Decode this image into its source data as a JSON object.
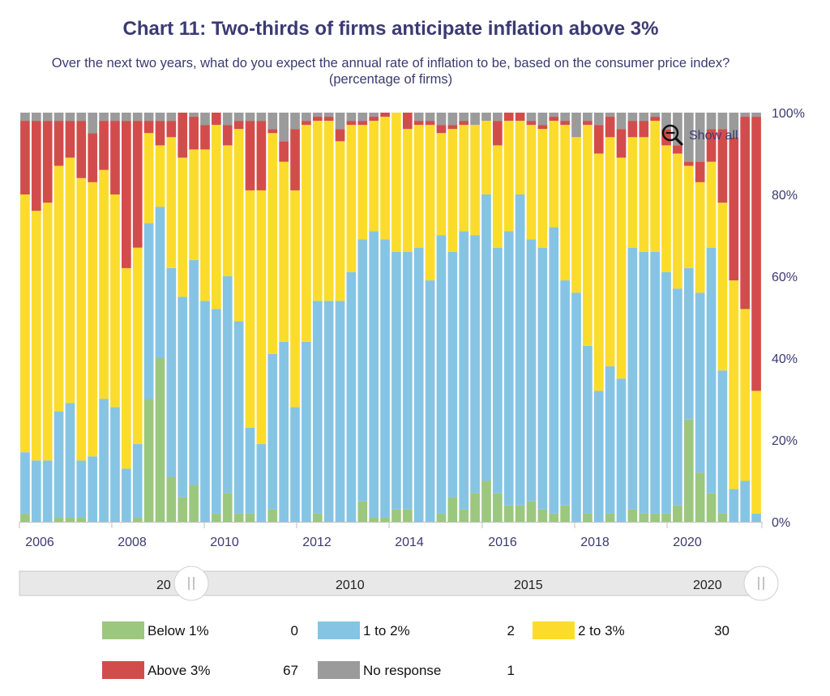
{
  "title": "Chart 11: Two-thirds of firms anticipate inflation above 3%",
  "subtitle": "Over the next two years, what do you expect the annual rate of inflation to be, based on the consumer price index? (percentage of firms)",
  "show_all_label": "Show all",
  "navigator_labels": [
    "20",
    "2010",
    "2015",
    "2020"
  ],
  "colors": {
    "below1": "#9cc77f",
    "one_to_two": "#86c4e4",
    "two_to_three": "#fbdc2c",
    "above3": "#d34c4c",
    "no_response": "#9b9b9b",
    "axis_text": "#3b3a72"
  },
  "legend": [
    {
      "name": "Below 1%",
      "value": "0",
      "color": "#9cc77f"
    },
    {
      "name": "1 to 2%",
      "value": "2",
      "color": "#86c4e4"
    },
    {
      "name": "2 to 3%",
      "value": "30",
      "color": "#fbdc2c"
    },
    {
      "name": "Above 3%",
      "value": "67",
      "color": "#d34c4c"
    },
    {
      "name": "No response",
      "value": "1",
      "color": "#9b9b9b"
    }
  ],
  "chart_data": {
    "type": "bar",
    "stacked": true,
    "title": "Chart 11: Two-thirds of firms anticipate inflation above 3%",
    "subtitle": "Over the next two years, what do you expect the annual rate of inflation to be, based on the consumer price index? (percentage of firms)",
    "x_ticks": [
      "2006",
      "2008",
      "2010",
      "2012",
      "2014",
      "2016",
      "2018",
      "2020"
    ],
    "y_ticks": [
      "0%",
      "20%",
      "40%",
      "60%",
      "80%",
      "100%"
    ],
    "ylim": [
      0,
      100
    ],
    "grid": false,
    "legend_position": "bottom",
    "series_order": [
      "Below 1%",
      "1 to 2%",
      "2 to 3%",
      "Above 3%",
      "No response"
    ],
    "bars": [
      [
        2,
        15,
        63,
        18,
        2
      ],
      [
        0,
        15,
        61,
        22,
        2
      ],
      [
        0,
        15,
        63,
        20,
        2
      ],
      [
        1,
        26,
        60,
        11,
        2
      ],
      [
        1,
        28,
        60,
        9,
        2
      ],
      [
        1,
        14,
        69,
        14,
        2
      ],
      [
        0,
        16,
        67,
        12,
        5
      ],
      [
        0,
        30,
        56,
        12,
        2
      ],
      [
        0,
        28,
        52,
        18,
        2
      ],
      [
        0,
        13,
        49,
        36,
        2
      ],
      [
        1,
        18,
        48,
        31,
        2
      ],
      [
        30,
        43,
        22,
        3,
        2
      ],
      [
        40,
        37,
        15,
        6,
        2
      ],
      [
        11,
        51,
        32,
        4,
        2
      ],
      [
        6,
        49,
        34,
        11,
        0
      ],
      [
        9,
        55,
        27,
        8,
        1
      ],
      [
        0,
        54,
        37,
        6,
        3
      ],
      [
        2,
        50,
        45,
        3,
        0
      ],
      [
        7,
        53,
        32,
        5,
        3
      ],
      [
        2,
        47,
        47,
        2,
        2
      ],
      [
        2,
        21,
        58,
        17,
        2
      ],
      [
        0,
        19,
        62,
        17,
        2
      ],
      [
        3,
        38,
        54,
        1,
        4
      ],
      [
        0,
        44,
        44,
        5,
        7
      ],
      [
        0,
        28,
        53,
        15,
        4
      ],
      [
        0,
        44,
        53,
        1,
        2
      ],
      [
        2,
        52,
        44,
        1,
        1
      ],
      [
        0,
        54,
        44,
        1,
        1
      ],
      [
        0,
        54,
        39,
        3,
        4
      ],
      [
        0,
        61,
        36,
        1,
        2
      ],
      [
        5,
        64,
        28,
        1,
        2
      ],
      [
        1,
        70,
        27,
        1,
        1
      ],
      [
        1,
        68,
        30,
        1,
        0
      ],
      [
        3,
        63,
        34,
        0,
        0
      ],
      [
        3,
        63,
        30,
        4,
        0
      ],
      [
        0,
        67,
        30,
        1,
        2
      ],
      [
        0,
        59,
        38,
        1,
        2
      ],
      [
        2,
        68,
        25,
        2,
        3
      ],
      [
        6,
        60,
        30,
        1,
        3
      ],
      [
        3,
        68,
        26,
        1,
        2
      ],
      [
        7,
        63,
        27,
        0,
        3
      ],
      [
        10,
        70,
        18,
        0,
        2
      ],
      [
        7,
        60,
        25,
        6,
        2
      ],
      [
        4,
        67,
        27,
        2,
        0
      ],
      [
        4,
        76,
        18,
        2,
        0
      ],
      [
        5,
        64,
        28,
        1,
        2
      ],
      [
        3,
        64,
        29,
        1,
        3
      ],
      [
        2,
        70,
        26,
        1,
        1
      ],
      [
        4,
        55,
        38,
        1,
        2
      ],
      [
        0,
        56,
        38,
        0,
        6
      ],
      [
        2,
        41,
        54,
        1,
        2
      ],
      [
        0,
        32,
        58,
        7,
        3
      ],
      [
        2,
        36,
        56,
        5,
        1
      ],
      [
        0,
        35,
        54,
        7,
        4
      ],
      [
        3,
        64,
        27,
        4,
        2
      ],
      [
        2,
        64,
        28,
        4,
        2
      ],
      [
        2,
        64,
        32,
        1,
        1
      ],
      [
        2,
        59,
        31,
        4,
        4
      ],
      [
        4,
        53,
        33,
        2,
        8
      ],
      [
        25,
        37,
        25,
        1,
        12
      ],
      [
        12,
        44,
        27,
        5,
        12
      ],
      [
        7,
        60,
        21,
        8,
        4
      ],
      [
        2,
        35,
        41,
        18,
        4
      ],
      [
        0,
        8,
        51,
        35,
        6
      ],
      [
        0,
        10,
        42,
        47,
        1
      ],
      [
        0,
        2,
        30,
        67,
        1
      ]
    ]
  }
}
